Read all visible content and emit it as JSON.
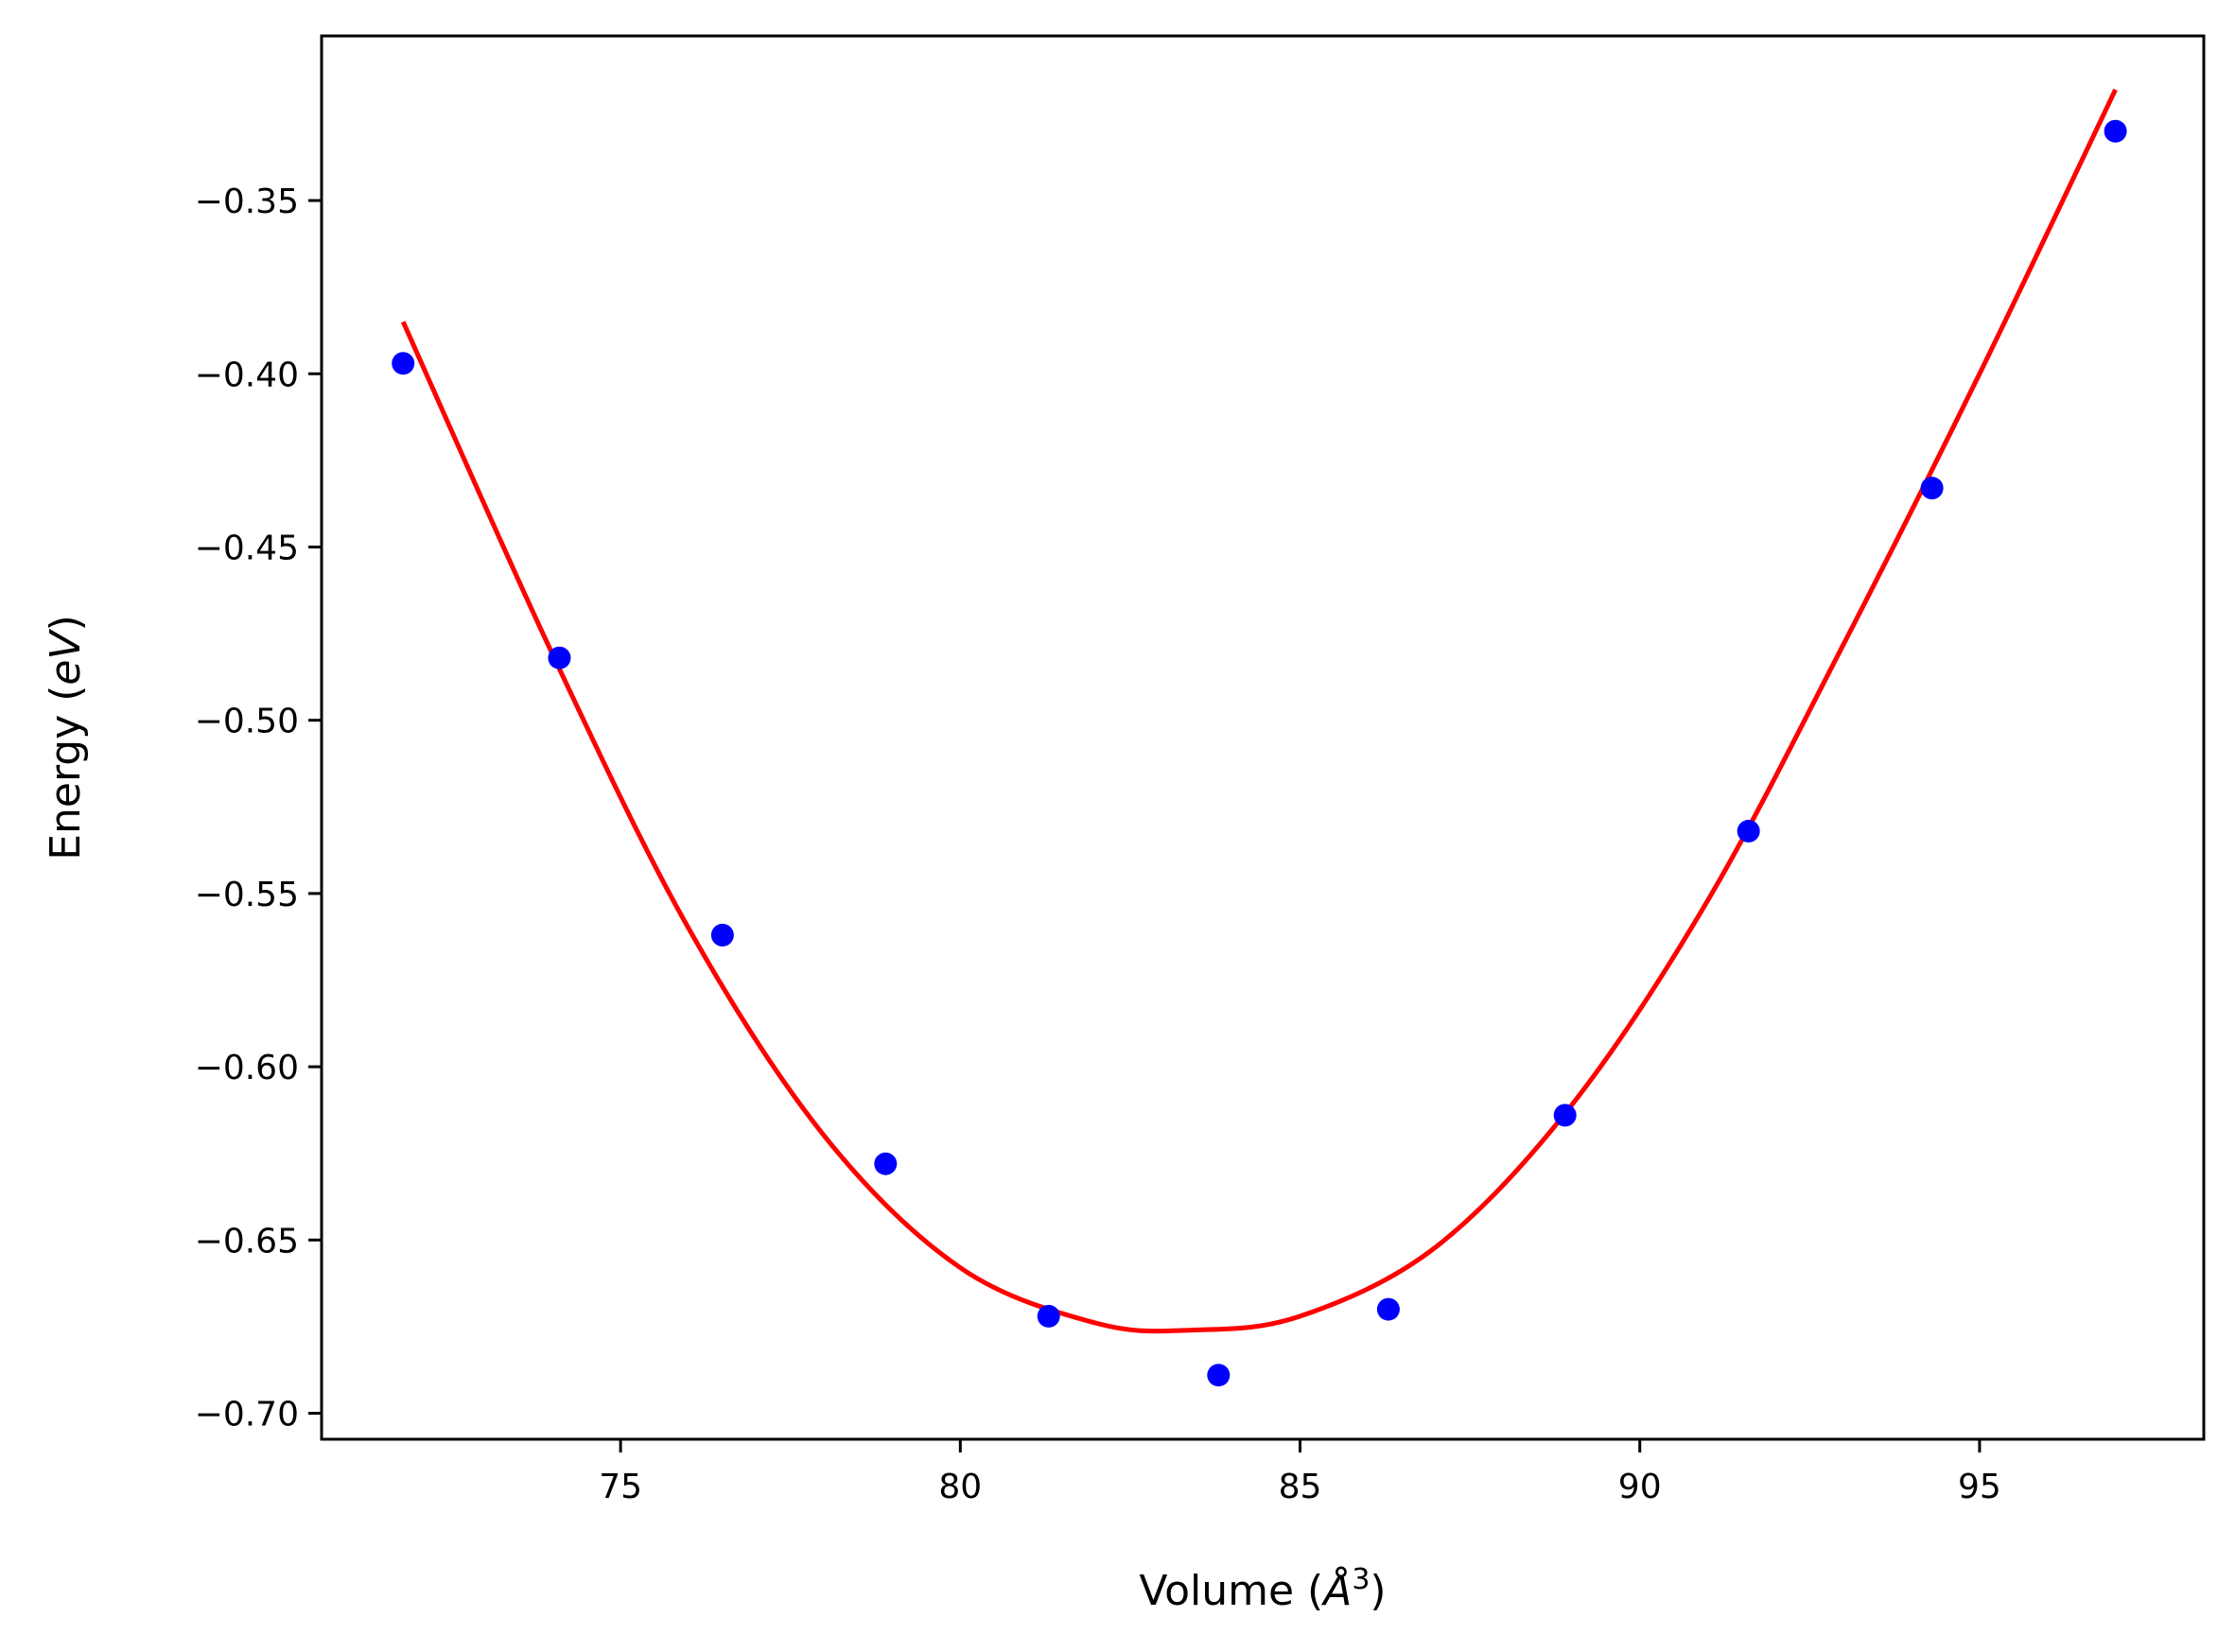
{
  "chart_data": {
    "type": "scatter",
    "title": "",
    "xlabel": {
      "prefix": "Volume (",
      "unit_symbol": "Å",
      "exponent": "3",
      "suffix": ")"
    },
    "ylabel": {
      "prefix": "Energy (",
      "unit_symbol": "eV",
      "suffix": ")"
    },
    "xlim": [
      70.6,
      98.3
    ],
    "ylim": [
      -0.7075,
      -0.3025
    ],
    "x_ticks": [
      75,
      80,
      85,
      90,
      95
    ],
    "x_tick_labels": [
      "75",
      "80",
      "85",
      "90",
      "95"
    ],
    "y_ticks": [
      -0.35,
      -0.4,
      -0.45,
      -0.5,
      -0.55,
      -0.6,
      -0.65,
      -0.7
    ],
    "y_tick_labels": [
      "−0.35",
      "−0.40",
      "−0.45",
      "−0.50",
      "−0.55",
      "−0.60",
      "−0.65",
      "−0.70"
    ],
    "grid": false,
    "series": [
      {
        "kind": "points",
        "color": "#0000ff",
        "x": [
          71.8,
          74.1,
          76.5,
          78.9,
          81.3,
          83.8,
          86.3,
          88.9,
          91.6,
          94.3,
          97.0
        ],
        "y": [
          -0.397,
          -0.482,
          -0.562,
          -0.628,
          -0.672,
          -0.689,
          -0.67,
          -0.614,
          -0.532,
          -0.433,
          -0.33
        ]
      },
      {
        "kind": "fit-line",
        "color": "#ff0000",
        "x": [
          71.8,
          74.0,
          76.0,
          78.0,
          80.0,
          82.0,
          83.4,
          85.0,
          87.0,
          89.0,
          91.0,
          93.0,
          95.0,
          97.0
        ],
        "y": [
          -0.385,
          -0.481,
          -0.56,
          -0.62,
          -0.658,
          -0.674,
          -0.676,
          -0.672,
          -0.652,
          -0.611,
          -0.552,
          -0.478,
          -0.4,
          -0.318
        ]
      }
    ]
  }
}
